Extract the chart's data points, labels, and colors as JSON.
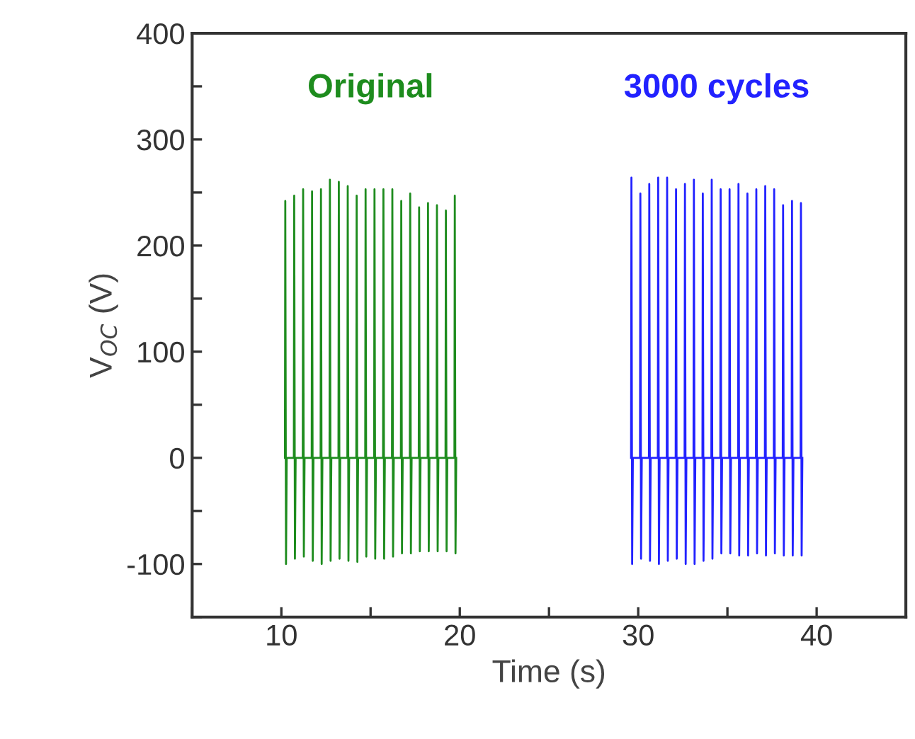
{
  "chart_data": {
    "type": "line",
    "xlabel": "Time (s)",
    "ylabel": "V$_{OC}$ (V)",
    "xlim": [
      5,
      45
    ],
    "xticks": [
      {
        "value": 5,
        "label": null
      },
      10,
      {
        "value": 15,
        "label": null
      },
      20,
      {
        "value": 25,
        "label": null
      },
      30,
      {
        "value": 35,
        "label": null
      },
      40,
      {
        "value": 45,
        "label": null
      }
    ],
    "ylim": [
      -150,
      400
    ],
    "yticks": [
      {
        "value": -150,
        "label": null
      },
      -100,
      {
        "value": -50,
        "label": null
      },
      0,
      {
        "value": 50,
        "label": null
      },
      100,
      {
        "value": 150,
        "label": null
      },
      200,
      {
        "value": 250,
        "label": null
      },
      300,
      {
        "value": 350,
        "label": null
      },
      400
    ],
    "grid": false,
    "legend": false,
    "marker": "none",
    "line_style": "solid",
    "series": [
      {
        "name": "Original",
        "color": "#1e8c1e",
        "x": [
          10.2,
          10.22,
          10.26,
          10.3,
          10.7,
          10.72,
          10.76,
          10.8,
          11.2,
          11.22,
          11.26,
          11.3,
          11.7,
          11.72,
          11.76,
          11.8,
          12.2,
          12.22,
          12.26,
          12.3,
          12.7,
          12.72,
          12.76,
          12.8,
          13.2,
          13.22,
          13.26,
          13.3,
          13.7,
          13.72,
          13.76,
          13.8,
          14.2,
          14.22,
          14.26,
          14.3,
          14.7,
          14.72,
          14.76,
          14.8,
          15.2,
          15.22,
          15.26,
          15.3,
          15.7,
          15.72,
          15.76,
          15.8,
          16.2,
          16.22,
          16.26,
          16.3,
          16.7,
          16.72,
          16.76,
          16.8,
          17.2,
          17.22,
          17.26,
          17.3,
          17.7,
          17.72,
          17.76,
          17.8,
          18.2,
          18.22,
          18.26,
          18.3,
          18.7,
          18.72,
          18.76,
          18.8,
          19.2,
          19.22,
          19.26,
          19.3,
          19.7,
          19.72,
          19.76,
          19.8
        ],
        "values": [
          0,
          242,
          -100,
          0,
          0,
          247,
          -95,
          0,
          0,
          253,
          -93,
          0,
          0,
          251,
          -97,
          0,
          0,
          253,
          -100,
          0,
          0,
          262,
          -97,
          0,
          0,
          260,
          -95,
          0,
          0,
          256,
          -97,
          0,
          0,
          247,
          -98,
          0,
          0,
          253,
          -93,
          0,
          0,
          253,
          -95,
          0,
          0,
          253,
          -95,
          0,
          0,
          253,
          -93,
          0,
          0,
          242,
          -90,
          0,
          0,
          249,
          -90,
          0,
          0,
          236,
          -88,
          0,
          0,
          240,
          -88,
          0,
          0,
          238,
          -88,
          0,
          0,
          233,
          -88,
          0,
          0,
          247,
          -90,
          0
        ]
      },
      {
        "name": "3000 cycles",
        "color": "#2222ff",
        "x": [
          29.6,
          29.62,
          29.66,
          29.7,
          30.1,
          30.12,
          30.16,
          30.2,
          30.6,
          30.62,
          30.66,
          30.7,
          31.1,
          31.12,
          31.16,
          31.2,
          31.6,
          31.62,
          31.66,
          31.7,
          32.1,
          32.12,
          32.16,
          32.2,
          32.6,
          32.62,
          32.66,
          32.7,
          33.1,
          33.12,
          33.16,
          33.2,
          33.6,
          33.62,
          33.66,
          33.7,
          34.1,
          34.12,
          34.16,
          34.2,
          34.6,
          34.62,
          34.66,
          34.7,
          35.1,
          35.12,
          35.16,
          35.2,
          35.6,
          35.62,
          35.66,
          35.7,
          36.1,
          36.12,
          36.16,
          36.2,
          36.6,
          36.62,
          36.66,
          36.7,
          37.1,
          37.12,
          37.16,
          37.2,
          37.6,
          37.62,
          37.66,
          37.7,
          38.1,
          38.12,
          38.16,
          38.2,
          38.6,
          38.62,
          38.66,
          38.7,
          39.1,
          39.12,
          39.16,
          39.2
        ],
        "values": [
          0,
          264,
          -100,
          0,
          0,
          249,
          -95,
          0,
          0,
          258,
          -97,
          0,
          0,
          264,
          -100,
          0,
          0,
          264,
          -97,
          0,
          0,
          253,
          -95,
          0,
          0,
          258,
          -100,
          0,
          0,
          262,
          -100,
          0,
          0,
          249,
          -97,
          0,
          0,
          262,
          -95,
          0,
          0,
          253,
          -90,
          0,
          0,
          253,
          -90,
          0,
          0,
          258,
          -92,
          0,
          0,
          249,
          -92,
          0,
          0,
          253,
          -90,
          0,
          0,
          256,
          -92,
          0,
          0,
          253,
          -90,
          0,
          0,
          238,
          -92,
          0,
          0,
          242,
          -92,
          0,
          0,
          240,
          -92,
          0
        ]
      }
    ]
  }
}
